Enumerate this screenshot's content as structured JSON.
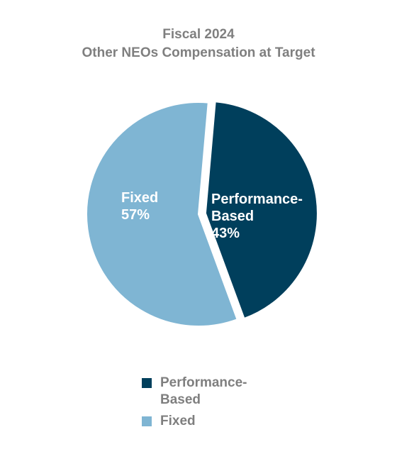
{
  "chart_data": {
    "type": "pie",
    "title_line1": "Fiscal 2024",
    "title_line2": "Other NEOs Compensation at Target",
    "slices": [
      {
        "name": "Performance-Based",
        "label_lines": [
          "Performance-",
          "Based"
        ],
        "value": 43,
        "value_label": "43%",
        "color": "#003f5c",
        "exploded": true
      },
      {
        "name": "Fixed",
        "label_lines": [
          "Fixed"
        ],
        "value": 57,
        "value_label": "57%",
        "color": "#7fb5d3",
        "exploded": false
      }
    ],
    "legend": {
      "placement": "bottom",
      "items": [
        {
          "label": "Performance-Based",
          "color": "#003f5c"
        },
        {
          "label": "Fixed",
          "color": "#7fb5d3"
        }
      ]
    }
  },
  "colors": {
    "title": "#7f7f7f",
    "legend_text": "#7f7f7f",
    "slice_text": "#ffffff"
  }
}
